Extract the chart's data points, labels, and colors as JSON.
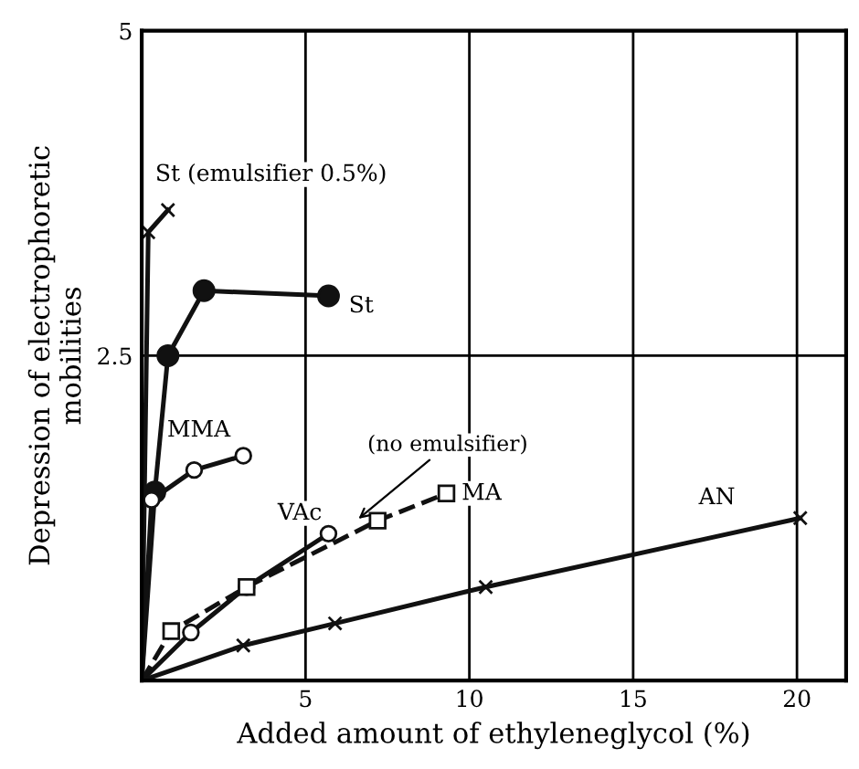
{
  "chart_data": {
    "type": "line",
    "xlabel": "Added amount of ethyleneglycol (%)",
    "ylabel": "Depression of electrophoretic\nmobilities",
    "xlim": [
      0,
      21.5
    ],
    "ylim": [
      0,
      5
    ],
    "xticks": [
      {
        "value": 0,
        "label": null
      },
      5,
      10,
      15,
      20
    ],
    "yticks": [
      {
        "value": 0,
        "label": null
      },
      2.5,
      5
    ],
    "grid": true,
    "legend": false,
    "annotations": [
      {
        "text": "(no emulsifier)",
        "x": 6.5,
        "y": 1.22
      }
    ],
    "series": [
      {
        "name": "St (emulsifier 0.5%)",
        "color": "#111111",
        "marker": "cross",
        "line_style": "solid",
        "x": [
          0,
          0.2,
          0.8
        ],
        "values": [
          0,
          3.45,
          3.62
        ]
      },
      {
        "name": "St",
        "color": "#111111",
        "marker": "circle",
        "line_style": "solid",
        "x": [
          0,
          0.4,
          0.8,
          1.9,
          5.7
        ],
        "values": [
          0,
          1.45,
          2.5,
          3.0,
          2.96
        ]
      },
      {
        "name": "MMA",
        "color": "#111111",
        "marker": "circle",
        "line_style": "solid",
        "x": [
          0,
          0.3,
          1.6,
          3.1
        ],
        "values": [
          0,
          1.39,
          1.62,
          1.73
        ]
      },
      {
        "name": "VAc",
        "color": "#111111",
        "marker": "circle",
        "line_style": "solid",
        "x": [
          0,
          1.5,
          3.2,
          5.7
        ],
        "values": [
          0,
          0.37,
          0.72,
          1.13
        ]
      },
      {
        "name": "MA",
        "color": "#111111",
        "marker": "square",
        "line_style": "dashed",
        "x": [
          0,
          0.9,
          3.2,
          7.2,
          9.3
        ],
        "values": [
          0,
          0.38,
          0.72,
          1.23,
          1.44
        ]
      },
      {
        "name": "AN",
        "color": "#111111",
        "marker": "cross",
        "line_style": "solid",
        "x": [
          0,
          3.1,
          5.9,
          10.5,
          20.1
        ],
        "values": [
          0,
          0.27,
          0.44,
          0.72,
          1.25
        ]
      }
    ]
  }
}
